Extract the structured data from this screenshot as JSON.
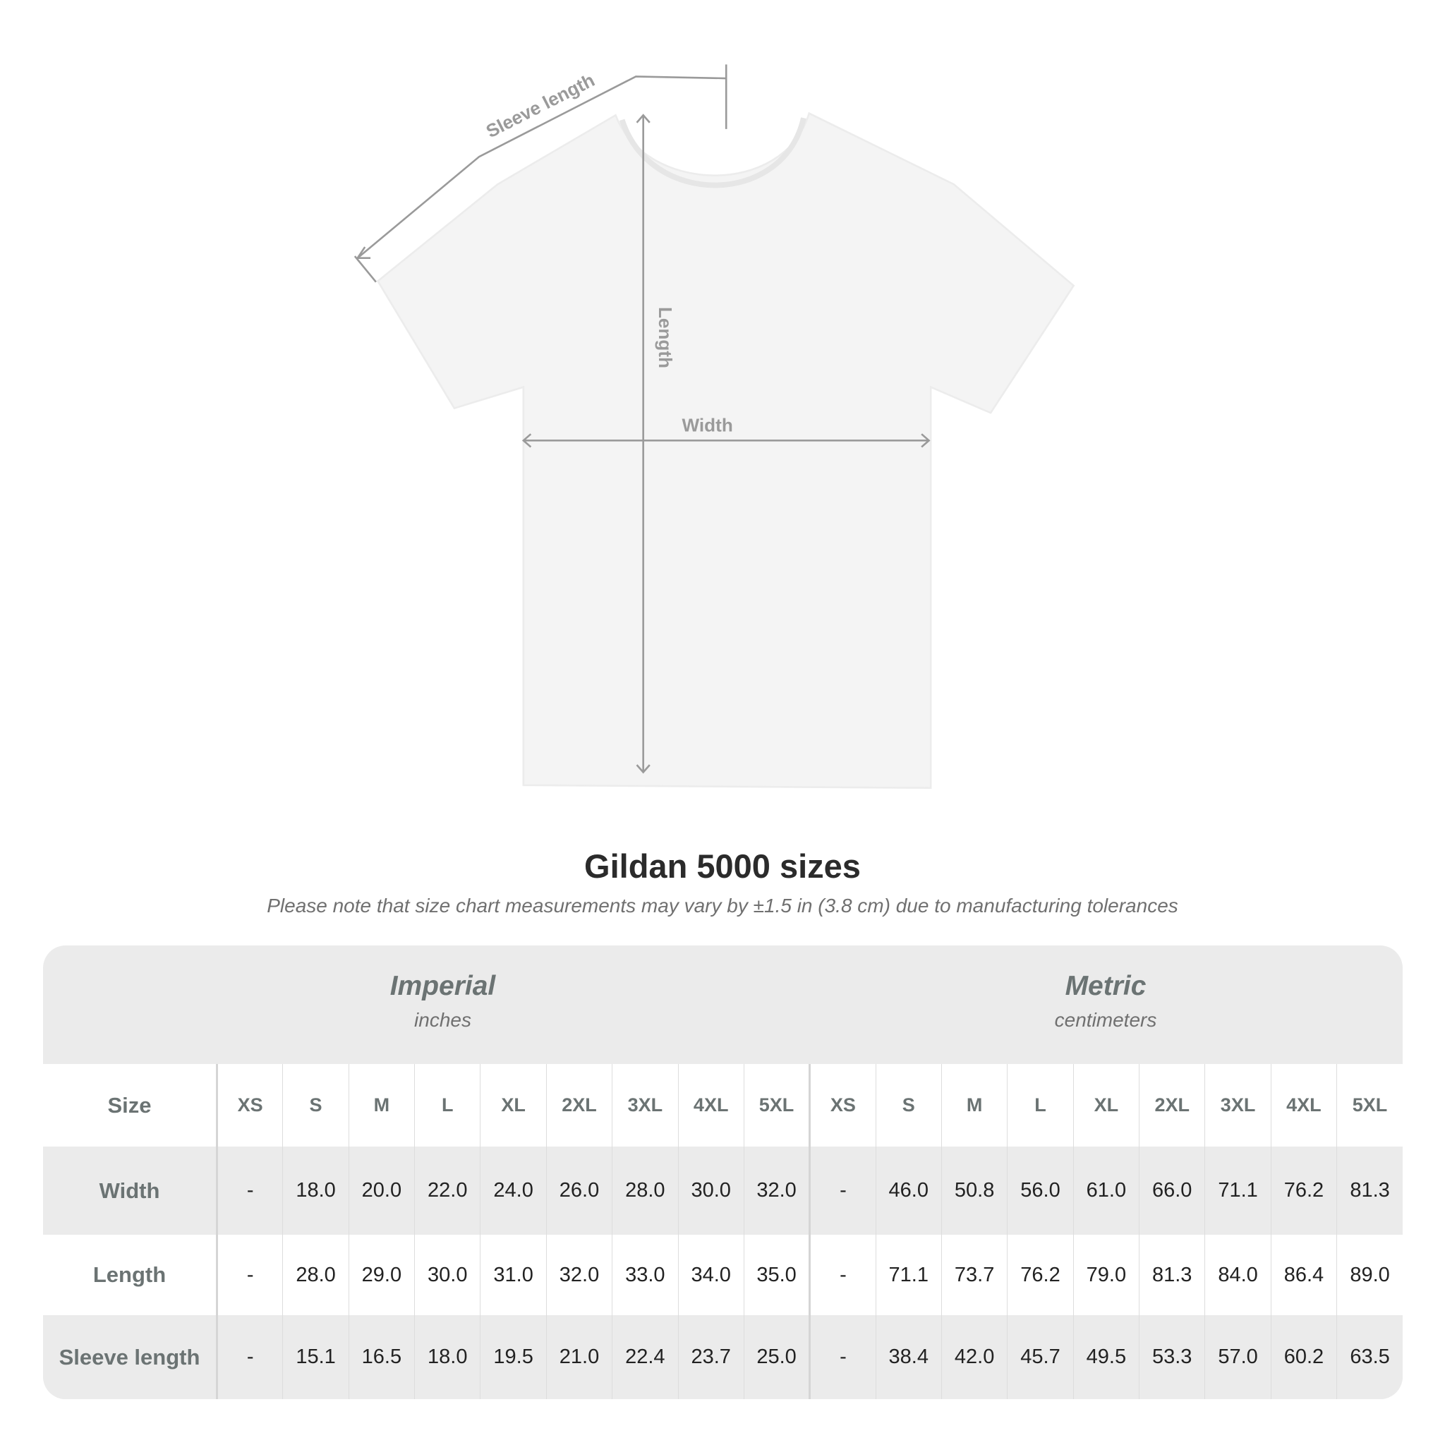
{
  "diagram": {
    "sleeve_label": "Sleeve length",
    "length_label": "Length",
    "width_label": "Width",
    "label_color": "#9a9a9a"
  },
  "title": "Gildan 5000 sizes",
  "note": "Please note that size chart measurements may vary by ±1.5 in (3.8 cm) due to manufacturing tolerances",
  "table": {
    "imperial": {
      "label": "Imperial",
      "unit": "inches"
    },
    "metric": {
      "label": "Metric",
      "unit": "centimeters"
    },
    "size_label": "Size",
    "sizes": [
      "XS",
      "S",
      "M",
      "L",
      "XL",
      "2XL",
      "3XL",
      "4XL",
      "5XL"
    ],
    "rows": [
      {
        "label": "Width",
        "imperial": [
          "-",
          "18.0",
          "20.0",
          "22.0",
          "24.0",
          "26.0",
          "28.0",
          "30.0",
          "32.0"
        ],
        "metric": [
          "-",
          "46.0",
          "50.8",
          "56.0",
          "61.0",
          "66.0",
          "71.1",
          "76.2",
          "81.3"
        ]
      },
      {
        "label": "Length",
        "imperial": [
          "-",
          "28.0",
          "29.0",
          "30.0",
          "31.0",
          "32.0",
          "33.0",
          "34.0",
          "35.0"
        ],
        "metric": [
          "-",
          "71.1",
          "73.7",
          "76.2",
          "79.0",
          "81.3",
          "84.0",
          "86.4",
          "89.0"
        ]
      },
      {
        "label": "Sleeve length",
        "imperial": [
          "-",
          "15.1",
          "16.5",
          "18.0",
          "19.5",
          "21.0",
          "22.4",
          "23.7",
          "25.0"
        ],
        "metric": [
          "-",
          "38.4",
          "42.0",
          "45.7",
          "49.5",
          "53.3",
          "57.0",
          "60.2",
          "63.5"
        ]
      }
    ]
  }
}
